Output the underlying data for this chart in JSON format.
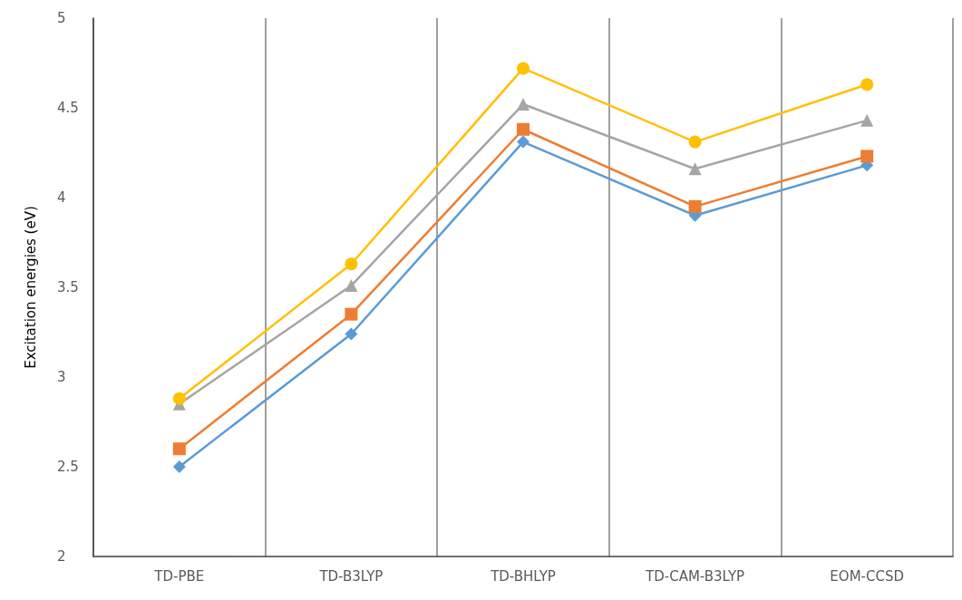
{
  "chart_data": {
    "type": "line",
    "ylabel": "Excitation energies (eV)",
    "categories": [
      "TD-PBE",
      "TD-B3LYP",
      "TD-BHLYP",
      "TD-CAM-B3LYP",
      "EOM-CCSD"
    ],
    "ylim": [
      2,
      5
    ],
    "yticks": [
      2,
      2.5,
      3,
      3.5,
      4,
      4.5,
      5
    ],
    "grid": "x",
    "line_style": "solid",
    "series": [
      {
        "color": "#5b9bd5",
        "marker": "diamond",
        "values": [
          2.5,
          3.24,
          4.31,
          3.9,
          4.18
        ]
      },
      {
        "color": "#ed7d31",
        "marker": "square",
        "values": [
          2.6,
          3.35,
          4.38,
          3.95,
          4.23
        ]
      },
      {
        "color": "#a5a5a5",
        "marker": "triangle",
        "values": [
          2.85,
          3.51,
          4.52,
          4.16,
          4.43
        ]
      },
      {
        "color": "#ffc000",
        "marker": "circle",
        "values": [
          2.88,
          3.63,
          4.72,
          4.31,
          4.63
        ]
      }
    ]
  }
}
